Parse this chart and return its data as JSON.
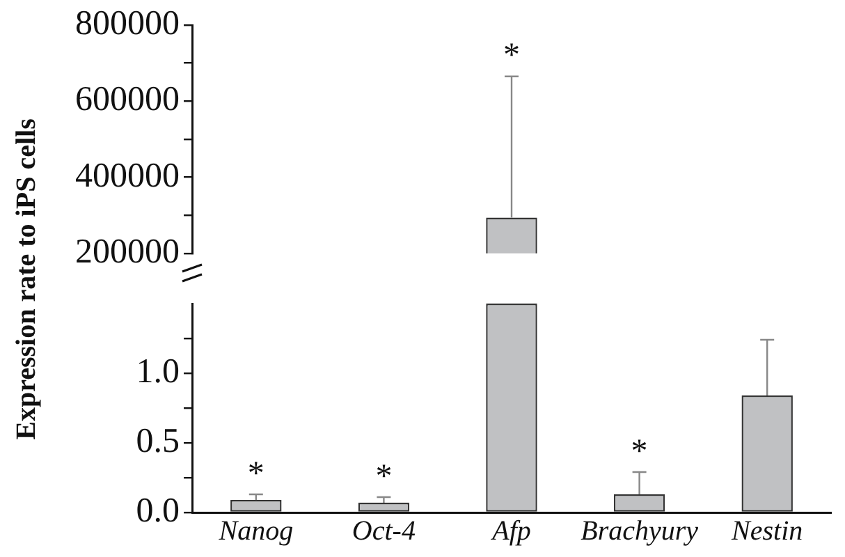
{
  "chart_data": [
    {
      "type": "bar",
      "ylabel": "Expression rate to iPS cells",
      "categories": [
        "Nanog",
        "Oct-4",
        "Afp",
        "Brachyury",
        "Nestin"
      ],
      "values": [
        null,
        null,
        294000,
        null,
        null
      ],
      "errors": [
        null,
        null,
        [
          294000,
          665000
        ],
        null,
        null
      ],
      "color": "#c0c1c3",
      "ylim": [
        200000,
        800000
      ],
      "yticks": [
        200000,
        {
          "value": 300000,
          "label": null
        },
        400000,
        {
          "value": 500000,
          "label": null
        },
        600000,
        {
          "value": 700000,
          "label": null
        },
        800000
      ],
      "tick_labels": "y",
      "grid": false,
      "legend": false,
      "annotations": [
        {
          "text": "*",
          "x": "Afp",
          "y": 665000
        }
      ]
    },
    {
      "type": "bar",
      "categories": [
        "Nanog",
        "Oct-4",
        "Afp",
        "Brachyury",
        "Nestin"
      ],
      "values": [
        0.09,
        0.07,
        1.5,
        0.13,
        0.84
      ],
      "errors": [
        [
          0.09,
          0.13
        ],
        [
          0.07,
          0.11
        ],
        null,
        [
          0.13,
          0.29
        ],
        [
          0.84,
          1.24
        ]
      ],
      "color": "#c0c1c3",
      "ylim": [
        0,
        1.5
      ],
      "yticks": [
        {
          "value": 0,
          "label": "0.0"
        },
        {
          "value": 0.25,
          "label": null
        },
        {
          "value": 0.5,
          "label": "0.5"
        },
        {
          "value": 0.75,
          "label": null
        },
        {
          "value": 1,
          "label": "1.0"
        },
        {
          "value": 1.25,
          "label": null
        }
      ],
      "grid": false,
      "legend": false,
      "annotations": [
        {
          "text": "*",
          "x": "Nanog",
          "y": 0.13
        },
        {
          "text": "*",
          "x": "Oct-4",
          "y": 0.11
        },
        {
          "text": "*",
          "x": "Brachyury",
          "y": 0.29
        }
      ]
    }
  ]
}
